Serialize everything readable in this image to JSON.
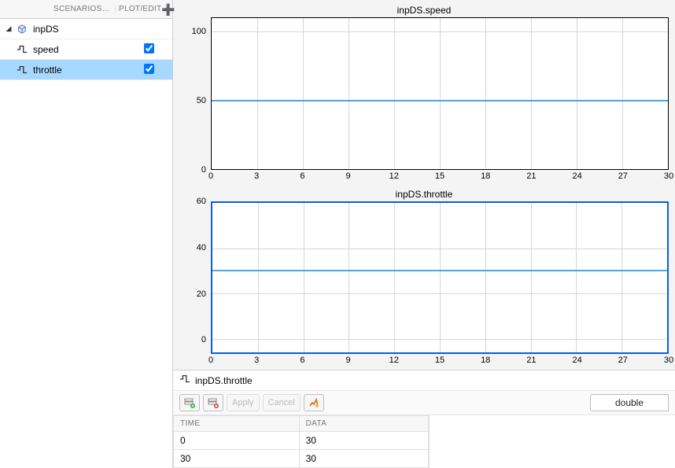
{
  "tree": {
    "header_scenarios": "SCENARIOS...",
    "header_plot": "PLOT/EDIT",
    "root": {
      "label": "inpDS"
    },
    "signals": [
      {
        "name": "speed",
        "plotted": true,
        "selected": false
      },
      {
        "name": "throttle",
        "plotted": true,
        "selected": true
      }
    ]
  },
  "plots": [
    {
      "title": "inpDS.speed",
      "active": false,
      "ylim": [
        0,
        110
      ],
      "yticks": [
        0,
        50,
        100
      ],
      "xlim": [
        0,
        30
      ],
      "xticks": [
        0,
        3,
        6,
        9,
        12,
        15,
        18,
        21,
        24,
        27,
        30
      ],
      "line_value": 50,
      "line_color": "#49a7e9",
      "background_color": "#ffffff",
      "grid_color": "#d6d6d6",
      "border_color": "#000000",
      "active_border_color": "#0b5ed7"
    },
    {
      "title": "inpDS.throttle",
      "active": true,
      "ylim": [
        -6,
        60
      ],
      "yticks": [
        0,
        20,
        40,
        60
      ],
      "xlim": [
        0,
        30
      ],
      "xticks": [
        0,
        3,
        6,
        9,
        12,
        15,
        18,
        21,
        24,
        27,
        30
      ],
      "line_value": 30,
      "line_color": "#49a7e9",
      "background_color": "#ffffff",
      "grid_color": "#d6d6d6",
      "border_color": "#000000",
      "active_border_color": "#0b5ed7"
    }
  ],
  "editor": {
    "editing_signal": "inpDS.throttle",
    "apply_label": "Apply",
    "cancel_label": "Cancel",
    "dtype": "double",
    "columns": [
      "TIME",
      "DATA"
    ],
    "rows": [
      [
        "0",
        "30"
      ],
      [
        "30",
        "30"
      ]
    ],
    "insert_row_green_color": "#2ba84a",
    "delete_row_red_color": "#d23b3b",
    "matlab_icon_accent": "#e06c00"
  },
  "colors": {
    "selection_bg": "#a7d8ff",
    "panel_bg": "#f4f4f4",
    "cube_fill": "#d9e8ff",
    "cube_stroke": "#4a6fae"
  }
}
